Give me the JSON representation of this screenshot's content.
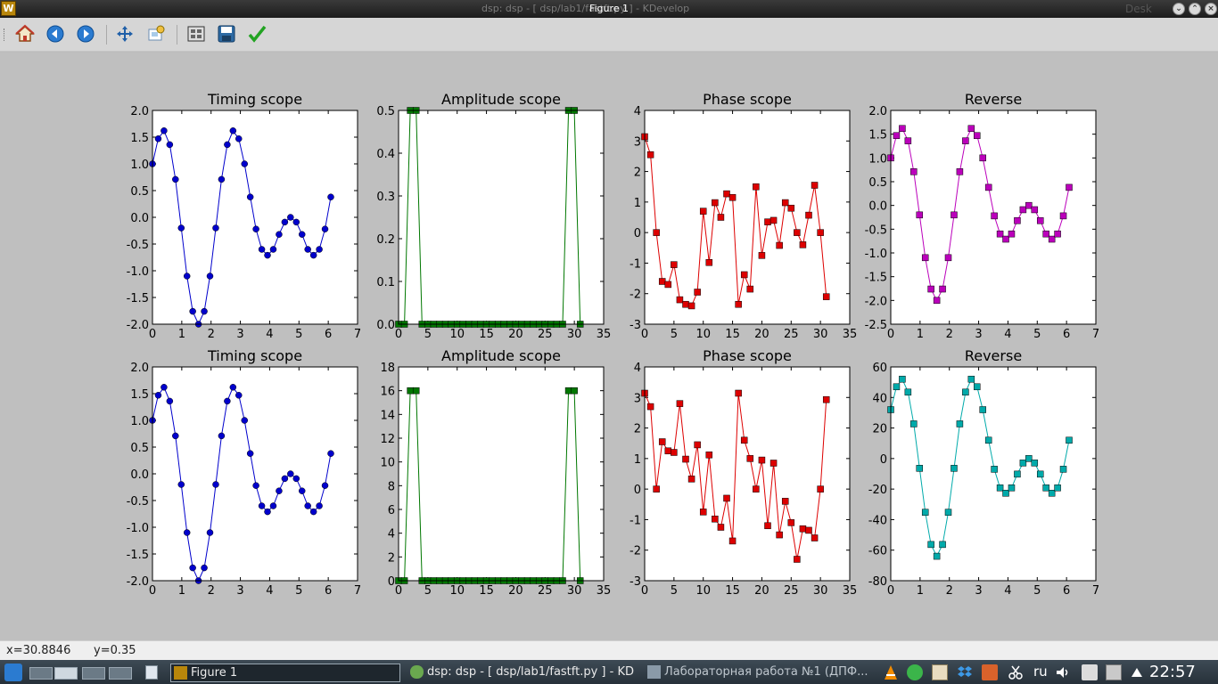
{
  "window": {
    "ghost_title": "dsp:  dsp - [ dsp/lab1/fastft.py ] - KDevelop",
    "title": "Figure 1",
    "desktop_label": "Desk"
  },
  "toolbar": {
    "icons": [
      "home-icon",
      "back-icon",
      "forward-icon",
      "pan-icon",
      "zoom-icon",
      "subplots-icon",
      "save-icon",
      "checkmark-icon"
    ]
  },
  "status": {
    "x_readout": "x=30.8846",
    "y_readout": "y=0.35"
  },
  "taskbar": {
    "tasks": [
      {
        "label": "Figure 1",
        "active": true
      },
      {
        "label": "dsp:  dsp - [ dsp/lab1/fastft.py ] - KD",
        "active": false
      },
      {
        "label": "Лабораторная работа №1 (ДПФ...",
        "active": false
      }
    ],
    "lang": "ru",
    "clock": "22:57"
  },
  "colors": {
    "timing": "#0000cc",
    "amplitude": "#007700",
    "phase": "#dd0000",
    "reverse_top": "#bb00bb",
    "reverse_bottom": "#00aaaa"
  },
  "chart_data": [
    {
      "type": "line",
      "title": "Timing scope",
      "marker": "circle",
      "color": "#0000cc",
      "xlim": [
        0,
        7
      ],
      "ylim": [
        -2.0,
        2.0
      ],
      "xticks": [
        "0",
        "1",
        "2",
        "3",
        "4",
        "5",
        "6",
        "7"
      ],
      "yticks": [
        "-2.0",
        "-1.5",
        "-1.0",
        "-0.5",
        "0.0",
        "0.5",
        "1.0",
        "1.5",
        "2.0"
      ],
      "x": [
        0,
        0.196,
        0.393,
        0.589,
        0.785,
        0.982,
        1.178,
        1.374,
        1.571,
        1.767,
        1.963,
        2.16,
        2.356,
        2.553,
        2.749,
        2.945,
        3.142,
        3.338,
        3.534,
        3.731,
        3.927,
        4.123,
        4.32,
        4.516,
        4.712,
        4.909,
        5.105,
        5.301,
        5.498,
        5.694,
        5.89,
        6.087
      ],
      "y": [
        1.0,
        1.47,
        1.62,
        1.36,
        0.71,
        -0.2,
        -1.1,
        -1.76,
        -2.0,
        -1.76,
        -1.1,
        -0.2,
        0.71,
        1.36,
        1.62,
        1.47,
        1.0,
        0.38,
        -0.22,
        -0.6,
        -0.71,
        -0.6,
        -0.32,
        -0.09,
        0.0,
        -0.09,
        -0.32,
        -0.6,
        -0.71,
        -0.6,
        -0.22,
        0.38
      ]
    },
    {
      "type": "line",
      "title": "Amplitude scope",
      "marker": "square",
      "color": "#007700",
      "xlim": [
        0,
        35
      ],
      "ylim": [
        0,
        0.5
      ],
      "xticks": [
        "0",
        "5",
        "10",
        "15",
        "20",
        "25",
        "30",
        "35"
      ],
      "yticks": [
        "0.0",
        "0.1",
        "0.2",
        "0.3",
        "0.4",
        "0.5"
      ],
      "x": [
        0,
        1,
        2,
        3,
        4,
        5,
        6,
        7,
        8,
        9,
        10,
        11,
        12,
        13,
        14,
        15,
        16,
        17,
        18,
        19,
        20,
        21,
        22,
        23,
        24,
        25,
        26,
        27,
        28,
        29,
        30,
        31
      ],
      "y": [
        0,
        0,
        0.5,
        0.5,
        0,
        0,
        0,
        0,
        0,
        0,
        0,
        0,
        0,
        0,
        0,
        0,
        0,
        0,
        0,
        0,
        0,
        0,
        0,
        0,
        0,
        0,
        0,
        0,
        0,
        0.5,
        0.5,
        0
      ]
    },
    {
      "type": "line",
      "title": "Phase scope",
      "marker": "square",
      "color": "#dd0000",
      "xlim": [
        0,
        35
      ],
      "ylim": [
        -3,
        4
      ],
      "xticks": [
        "0",
        "5",
        "10",
        "15",
        "20",
        "25",
        "30",
        "35"
      ],
      "yticks": [
        "-3",
        "-2",
        "-1",
        "0",
        "1",
        "2",
        "3",
        "4"
      ],
      "x": [
        0,
        1,
        2,
        3,
        4,
        5,
        6,
        7,
        8,
        9,
        10,
        11,
        12,
        13,
        14,
        15,
        16,
        17,
        18,
        19,
        20,
        21,
        22,
        23,
        24,
        25,
        26,
        27,
        28,
        29,
        30,
        31
      ],
      "y": [
        3.14,
        2.55,
        0.0,
        -1.6,
        -1.7,
        -1.05,
        -2.2,
        -2.35,
        -2.4,
        -1.95,
        0.7,
        -0.98,
        0.98,
        0.5,
        1.27,
        1.15,
        -2.35,
        -1.38,
        -1.85,
        1.5,
        -0.75,
        0.35,
        0.4,
        -0.42,
        0.98,
        0.8,
        0.0,
        -0.4,
        0.57,
        1.55,
        0.0,
        -2.1
      ]
    },
    {
      "type": "line",
      "title": "Reverse",
      "marker": "square",
      "color": "#bb00bb",
      "xlim": [
        0,
        7
      ],
      "ylim": [
        -2.5,
        2.0
      ],
      "xticks": [
        "0",
        "1",
        "2",
        "3",
        "4",
        "5",
        "6",
        "7"
      ],
      "yticks": [
        "-2.5",
        "-2.0",
        "-1.5",
        "-1.0",
        "-0.5",
        "0.0",
        "0.5",
        "1.0",
        "1.5",
        "2.0"
      ],
      "x": [
        0,
        0.196,
        0.393,
        0.589,
        0.785,
        0.982,
        1.178,
        1.374,
        1.571,
        1.767,
        1.963,
        2.16,
        2.356,
        2.553,
        2.749,
        2.945,
        3.142,
        3.338,
        3.534,
        3.731,
        3.927,
        4.123,
        4.32,
        4.516,
        4.712,
        4.909,
        5.105,
        5.301,
        5.498,
        5.694,
        5.89,
        6.087
      ],
      "y": [
        1.0,
        1.47,
        1.62,
        1.36,
        0.71,
        -0.2,
        -1.1,
        -1.76,
        -2.0,
        -1.76,
        -1.1,
        -0.2,
        0.71,
        1.36,
        1.62,
        1.47,
        1.0,
        0.38,
        -0.22,
        -0.6,
        -0.71,
        -0.6,
        -0.32,
        -0.09,
        0.0,
        -0.09,
        -0.32,
        -0.6,
        -0.71,
        -0.6,
        -0.22,
        0.38
      ]
    },
    {
      "type": "line",
      "title": "Timing scope",
      "marker": "circle",
      "color": "#0000cc",
      "xlim": [
        0,
        7
      ],
      "ylim": [
        -2.0,
        2.0
      ],
      "xticks": [
        "0",
        "1",
        "2",
        "3",
        "4",
        "5",
        "6",
        "7"
      ],
      "yticks": [
        "-2.0",
        "-1.5",
        "-1.0",
        "-0.5",
        "0.0",
        "0.5",
        "1.0",
        "1.5",
        "2.0"
      ],
      "x": [
        0,
        0.196,
        0.393,
        0.589,
        0.785,
        0.982,
        1.178,
        1.374,
        1.571,
        1.767,
        1.963,
        2.16,
        2.356,
        2.553,
        2.749,
        2.945,
        3.142,
        3.338,
        3.534,
        3.731,
        3.927,
        4.123,
        4.32,
        4.516,
        4.712,
        4.909,
        5.105,
        5.301,
        5.498,
        5.694,
        5.89,
        6.087
      ],
      "y": [
        1.0,
        1.47,
        1.62,
        1.36,
        0.71,
        -0.2,
        -1.1,
        -1.76,
        -2.0,
        -1.76,
        -1.1,
        -0.2,
        0.71,
        1.36,
        1.62,
        1.47,
        1.0,
        0.38,
        -0.22,
        -0.6,
        -0.71,
        -0.6,
        -0.32,
        -0.09,
        0.0,
        -0.09,
        -0.32,
        -0.6,
        -0.71,
        -0.6,
        -0.22,
        0.38
      ]
    },
    {
      "type": "line",
      "title": "Amplitude scope",
      "marker": "square",
      "color": "#007700",
      "xlim": [
        0,
        35
      ],
      "ylim": [
        0,
        18
      ],
      "xticks": [
        "0",
        "5",
        "10",
        "15",
        "20",
        "25",
        "30",
        "35"
      ],
      "yticks": [
        "0",
        "2",
        "4",
        "6",
        "8",
        "10",
        "12",
        "14",
        "16",
        "18"
      ],
      "x": [
        0,
        1,
        2,
        3,
        4,
        5,
        6,
        7,
        8,
        9,
        10,
        11,
        12,
        13,
        14,
        15,
        16,
        17,
        18,
        19,
        20,
        21,
        22,
        23,
        24,
        25,
        26,
        27,
        28,
        29,
        30,
        31
      ],
      "y": [
        0,
        0,
        16,
        16,
        0,
        0,
        0,
        0,
        0,
        0,
        0,
        0,
        0,
        0,
        0,
        0,
        0,
        0,
        0,
        0,
        0,
        0,
        0,
        0,
        0,
        0,
        0,
        0,
        0,
        16,
        16,
        0
      ]
    },
    {
      "type": "line",
      "title": "Phase scope",
      "marker": "square",
      "color": "#dd0000",
      "xlim": [
        0,
        35
      ],
      "ylim": [
        -3,
        4
      ],
      "xticks": [
        "0",
        "5",
        "10",
        "15",
        "20",
        "25",
        "30",
        "35"
      ],
      "yticks": [
        "-3",
        "-2",
        "-1",
        "0",
        "1",
        "2",
        "3",
        "4"
      ],
      "x": [
        0,
        1,
        2,
        3,
        4,
        5,
        6,
        7,
        8,
        9,
        10,
        11,
        12,
        13,
        14,
        15,
        16,
        17,
        18,
        19,
        20,
        21,
        22,
        23,
        24,
        25,
        26,
        27,
        28,
        29,
        30,
        31
      ],
      "y": [
        3.14,
        2.7,
        0.0,
        1.55,
        1.25,
        1.2,
        2.8,
        0.98,
        0.33,
        1.45,
        -0.75,
        1.12,
        -0.98,
        -1.25,
        -0.3,
        -1.7,
        3.14,
        1.6,
        1.0,
        0.0,
        0.95,
        -1.2,
        0.85,
        -1.5,
        -0.4,
        -1.1,
        -2.3,
        -1.3,
        -1.35,
        -1.6,
        0.0,
        2.93
      ]
    },
    {
      "type": "line",
      "title": "Reverse",
      "marker": "square",
      "color": "#00aaaa",
      "xlim": [
        0,
        7
      ],
      "ylim": [
        -80,
        60
      ],
      "xticks": [
        "0",
        "1",
        "2",
        "3",
        "4",
        "5",
        "6",
        "7"
      ],
      "yticks": [
        "-80",
        "-60",
        "-40",
        "-20",
        "0",
        "20",
        "40",
        "60"
      ],
      "x": [
        0,
        0.196,
        0.393,
        0.589,
        0.785,
        0.982,
        1.178,
        1.374,
        1.571,
        1.767,
        1.963,
        2.16,
        2.356,
        2.553,
        2.749,
        2.945,
        3.142,
        3.338,
        3.534,
        3.731,
        3.927,
        4.123,
        4.32,
        4.516,
        4.712,
        4.909,
        5.105,
        5.301,
        5.498,
        5.694,
        5.89,
        6.087
      ],
      "y": [
        32,
        47,
        52,
        43.5,
        22.7,
        -6.4,
        -35.2,
        -56.3,
        -64,
        -56.3,
        -35.2,
        -6.4,
        22.7,
        43.5,
        52,
        47,
        32,
        12,
        -7,
        -19.2,
        -22.7,
        -19.2,
        -10.2,
        -2.9,
        0,
        -2.9,
        -10.2,
        -19.2,
        -22.7,
        -19.2,
        -7,
        12
      ]
    }
  ]
}
